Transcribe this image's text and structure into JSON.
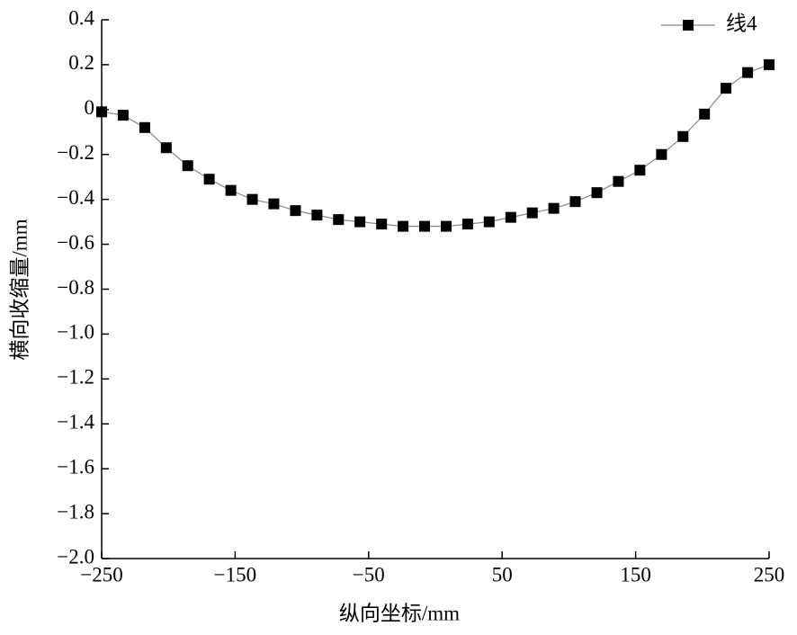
{
  "chart_data": {
    "type": "line",
    "x_label": "纵向坐标/mm",
    "y_label": "横向收缩量/mm",
    "x": [
      -250,
      -233.9,
      -217.7,
      -201.6,
      -185.5,
      -169.4,
      -153.2,
      -137.1,
      -121,
      -104.8,
      -88.7,
      -72.6,
      -56.5,
      -40.3,
      -24.2,
      -8.1,
      8.1,
      24.2,
      40.3,
      56.5,
      72.6,
      88.7,
      104.8,
      121,
      137.1,
      153.2,
      169.4,
      185.5,
      201.6,
      217.7,
      233.9,
      250
    ],
    "series": [
      {
        "name": "线4",
        "color": "#000000",
        "line_color": "#888888",
        "values": [
          -0.01,
          -0.025,
          -0.08,
          -0.17,
          -0.25,
          -0.31,
          -0.36,
          -0.4,
          -0.42,
          -0.45,
          -0.47,
          -0.49,
          -0.5,
          -0.51,
          -0.52,
          -0.52,
          -0.52,
          -0.51,
          -0.5,
          -0.48,
          -0.46,
          -0.44,
          -0.41,
          -0.37,
          -0.32,
          -0.27,
          -0.2,
          -0.12,
          -0.02,
          0.095,
          0.165,
          0.2
        ]
      }
    ],
    "xlim": [
      -250,
      250
    ],
    "xticks": [
      {
        "value": -250,
        "label": "−250"
      },
      {
        "value": -150,
        "label": "−150"
      },
      {
        "value": -50,
        "label": "−50"
      },
      50,
      150,
      250
    ],
    "ylim": [
      -2.0,
      0.4
    ],
    "yticks": [
      {
        "value": -2.0,
        "label": "−2.0"
      },
      {
        "value": -1.8,
        "label": "−1.8"
      },
      {
        "value": -1.6,
        "label": "−1.6"
      },
      {
        "value": -1.4,
        "label": "−1.4"
      },
      {
        "value": -1.2,
        "label": "−1.2"
      },
      {
        "value": -1.0,
        "label": "−1.0"
      },
      {
        "value": -0.8,
        "label": "−0.8"
      },
      {
        "value": -0.6,
        "label": "−0.6"
      },
      {
        "value": -0.4,
        "label": "−0.4"
      },
      {
        "value": -0.2,
        "label": "−0.2"
      },
      0,
      0.2,
      0.4
    ],
    "legend": "top-right"
  }
}
